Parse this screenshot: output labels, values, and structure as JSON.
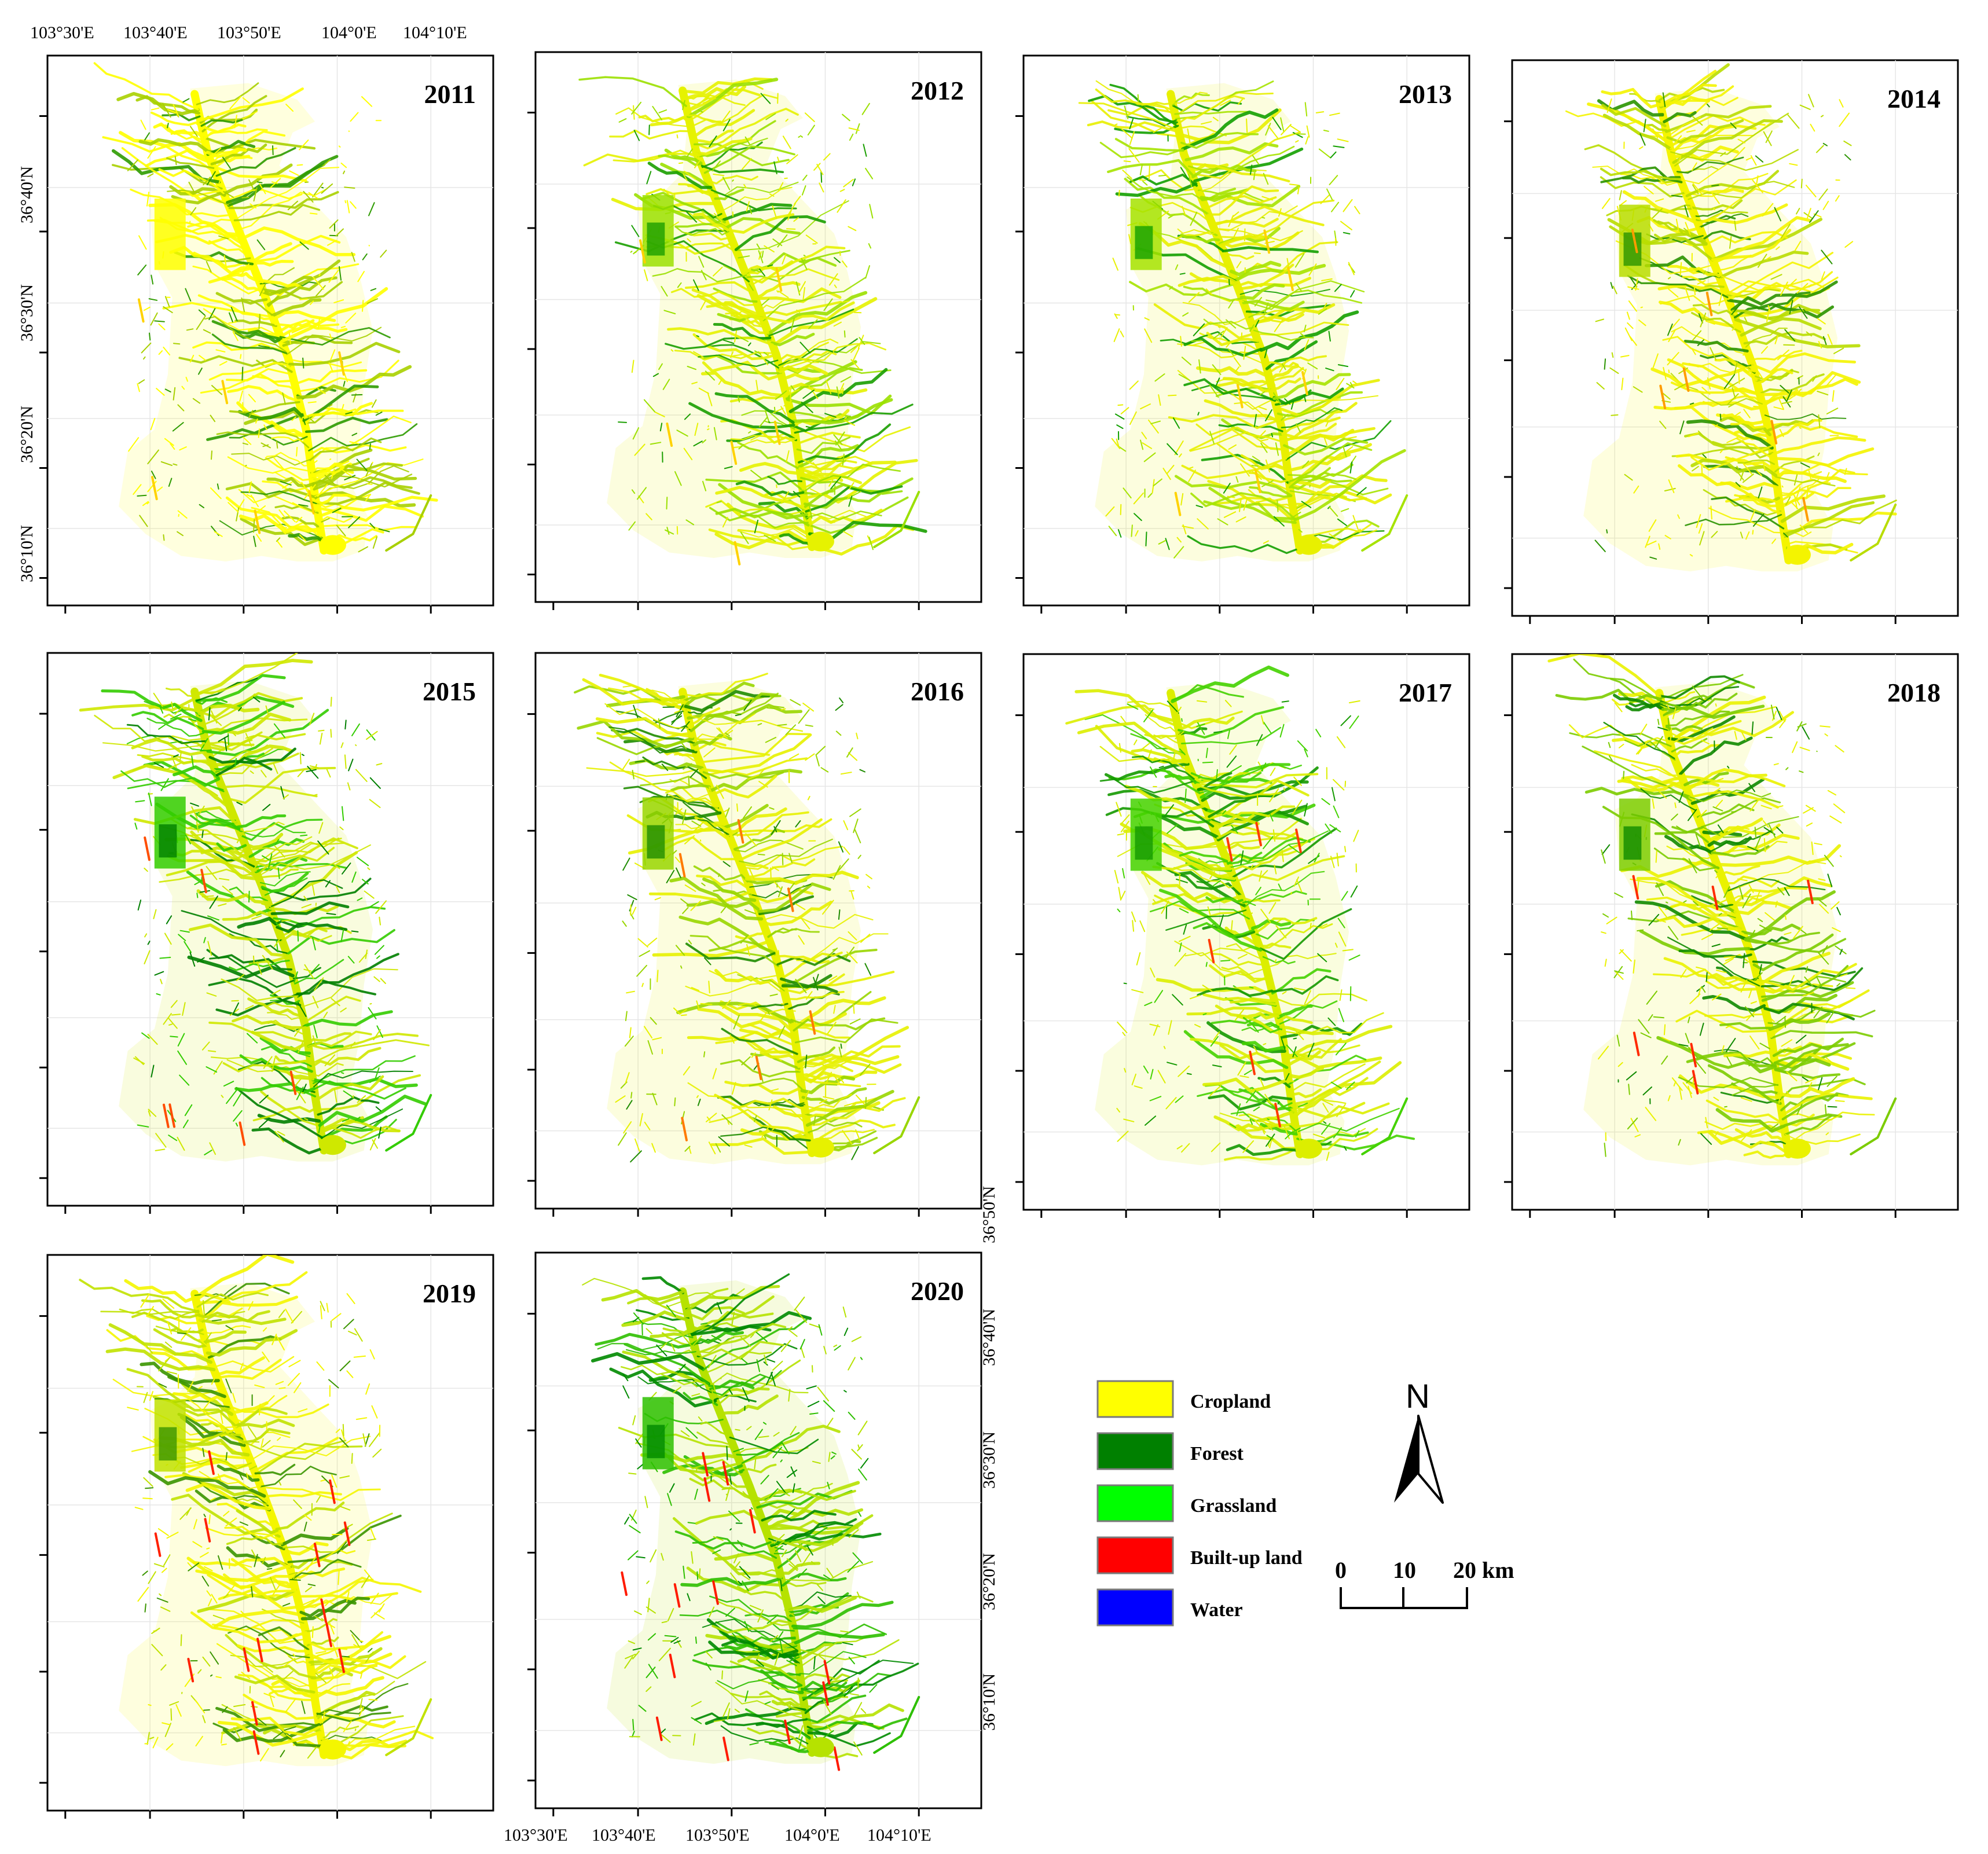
{
  "years": [
    "2011",
    "2012",
    "2013",
    "2014",
    "2015",
    "2016",
    "2017",
    "2018",
    "2019",
    "2020"
  ],
  "longitude_labels": [
    "103°30'E",
    "103°40'E",
    "103°50'E",
    "104°0'E",
    "104°10'E"
  ],
  "latitude_labels": [
    "36°40'N",
    "36°30'N",
    "36°20'N",
    "36°10'N"
  ],
  "latitude_labels_right": [
    "36°50'N",
    "36°40'N",
    "36°30'N",
    "36°20'N",
    "36°10'N"
  ],
  "legend": [
    {
      "label": "Cropland",
      "color": "#ffff00"
    },
    {
      "label": "Forest",
      "color": "#008000"
    },
    {
      "label": "Grassland",
      "color": "#00ff00"
    },
    {
      "label": "Built-up land",
      "color": "#ff0000"
    },
    {
      "label": "Water",
      "color": "#0000ff"
    }
  ],
  "north_arrow": {
    "label": "N"
  },
  "scale_bar": {
    "ticks": [
      "0",
      "10",
      "20 km"
    ]
  },
  "land_cover_mix": {
    "2011": {
      "main": "#ffff00",
      "second": "#a8d000",
      "third": "#2e9b00",
      "accent": "#ffd200"
    },
    "2012": {
      "main": "#e6f200",
      "second": "#9be000",
      "third": "#1a9e00",
      "accent": "#ffd200"
    },
    "2013": {
      "main": "#e8f000",
      "second": "#a6e300",
      "third": "#13a000",
      "accent": "#ffd200"
    },
    "2014": {
      "main": "#f4f400",
      "second": "#b9dd00",
      "third": "#2a9400",
      "accent": "#ff9c00"
    },
    "2015": {
      "main": "#cfe800",
      "second": "#33cc00",
      "third": "#007f00",
      "accent": "#ff4d00"
    },
    "2016": {
      "main": "#e7f100",
      "second": "#99d600",
      "third": "#1e8c00",
      "accent": "#ff7a00"
    },
    "2017": {
      "main": "#dcee00",
      "second": "#44d200",
      "third": "#149900",
      "accent": "#ff3b00"
    },
    "2018": {
      "main": "#eaf200",
      "second": "#7ccc00",
      "third": "#0f8a00",
      "accent": "#ff2a00"
    },
    "2019": {
      "main": "#f4f600",
      "second": "#c1e200",
      "third": "#3a9500",
      "accent": "#ff2000"
    },
    "2020": {
      "main": "#b6e200",
      "second": "#2dbf00",
      "third": "#008a00",
      "accent": "#ff1a00"
    }
  }
}
